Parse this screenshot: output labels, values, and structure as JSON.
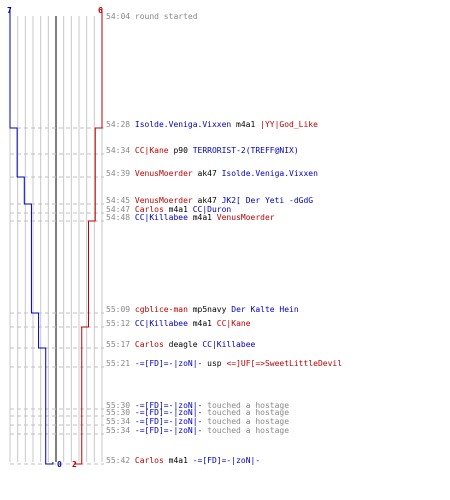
{
  "colors": {
    "ct": "#0000c0",
    "t": "#c00000",
    "neutral": "#000000",
    "time": "#888888",
    "grid": "#c8c8c8",
    "axis": "#555555",
    "dash": "#c0c0c0"
  },
  "counters": {
    "ct_start": "7",
    "t_start": "6",
    "ct_end": "0",
    "t_end": "2"
  },
  "events": [
    {
      "time": "54:04",
      "parts": [
        {
          "text": "round started",
          "side": "sys"
        }
      ]
    },
    {
      "time": "54:28",
      "parts": [
        {
          "text": "Isolde.Veniga.Vixxen",
          "side": "ct"
        },
        {
          "text": " m4a1 ",
          "side": "plain"
        },
        {
          "text": "|YY|God_Like",
          "side": "t"
        }
      ]
    },
    {
      "time": "54:34",
      "parts": [
        {
          "text": "CC|Kane",
          "side": "t"
        },
        {
          "text": " p90 ",
          "side": "plain"
        },
        {
          "text": "TERRORIST-2(TREFF@NIX)",
          "side": "ct"
        }
      ]
    },
    {
      "time": "54:39",
      "parts": [
        {
          "text": "VenusMoerder",
          "side": "t"
        },
        {
          "text": " ak47 ",
          "side": "plain"
        },
        {
          "text": "Isolde.Veniga.Vixxen",
          "side": "ct"
        }
      ]
    },
    {
      "time": "54:45",
      "parts": [
        {
          "text": "VenusMoerder",
          "side": "t"
        },
        {
          "text": " ak47 ",
          "side": "plain"
        },
        {
          "text": "JK2[ Der Yeti -dGdG",
          "side": "ct"
        }
      ]
    },
    {
      "time": "54:47",
      "parts": [
        {
          "text": "Carlos",
          "side": "t"
        },
        {
          "text": " m4a1 ",
          "side": "plain"
        },
        {
          "text": "CC|Duron",
          "side": "ct"
        }
      ]
    },
    {
      "time": "54:48",
      "parts": [
        {
          "text": "CC|Killabee",
          "side": "ct"
        },
        {
          "text": " m4a1 ",
          "side": "plain"
        },
        {
          "text": "VenusMoerder",
          "side": "t"
        }
      ]
    },
    {
      "time": "55:09",
      "parts": [
        {
          "text": "cgblice-man",
          "side": "t"
        },
        {
          "text": " mp5navy ",
          "side": "plain"
        },
        {
          "text": "Der Kalte Hein",
          "side": "ct"
        }
      ]
    },
    {
      "time": "55:12",
      "parts": [
        {
          "text": "CC|Killabee",
          "side": "ct"
        },
        {
          "text": " m4a1 ",
          "side": "plain"
        },
        {
          "text": "CC|Kane",
          "side": "t"
        }
      ]
    },
    {
      "time": "55:17",
      "parts": [
        {
          "text": "Carlos",
          "side": "t"
        },
        {
          "text": " deagle ",
          "side": "plain"
        },
        {
          "text": "CC|Killabee",
          "side": "ct"
        }
      ]
    },
    {
      "time": "55:21",
      "parts": [
        {
          "text": "-=[FD]=-|zoN|-",
          "side": "ct"
        },
        {
          "text": " usp ",
          "side": "plain"
        },
        {
          "text": "<=]UF[=>SweetLittleDevil",
          "side": "t"
        }
      ]
    },
    {
      "time": "55:30",
      "parts": [
        {
          "text": "-=[FD]=-|zoN|-",
          "side": "ct"
        },
        {
          "text": " touched a hostage",
          "side": "sys"
        }
      ]
    },
    {
      "time": "55:30",
      "parts": [
        {
          "text": "-=[FD]=-|zoN|-",
          "side": "ct"
        },
        {
          "text": " touched a hostage",
          "side": "sys"
        }
      ]
    },
    {
      "time": "55:34",
      "parts": [
        {
          "text": "-=[FD]=-|zoN|-",
          "side": "ct"
        },
        {
          "text": " touched a hostage",
          "side": "sys"
        }
      ]
    },
    {
      "time": "55:34",
      "parts": [
        {
          "text": "-=[FD]=-|zoN|-",
          "side": "ct"
        },
        {
          "text": " touched a hostage",
          "side": "sys"
        }
      ]
    },
    {
      "time": "55:42",
      "parts": [
        {
          "text": "Carlos",
          "side": "t"
        },
        {
          "text": " m4a1 ",
          "side": "plain"
        },
        {
          "text": "-=[FD]=-|zoN|-",
          "side": "ct"
        }
      ]
    }
  ],
  "chart_data": {
    "type": "line",
    "x_unit": "players alive",
    "series": [
      {
        "team": "ct",
        "values": [
          7,
          7,
          6,
          6,
          5,
          4,
          4,
          4,
          3,
          3,
          2,
          2,
          2,
          2,
          2,
          2,
          1,
          0
        ]
      },
      {
        "team": "t",
        "values": [
          6,
          6,
          5,
          5,
          5,
          5,
          5,
          4,
          4,
          3,
          3,
          3,
          3,
          3,
          3,
          3,
          2,
          2
        ]
      }
    ]
  }
}
